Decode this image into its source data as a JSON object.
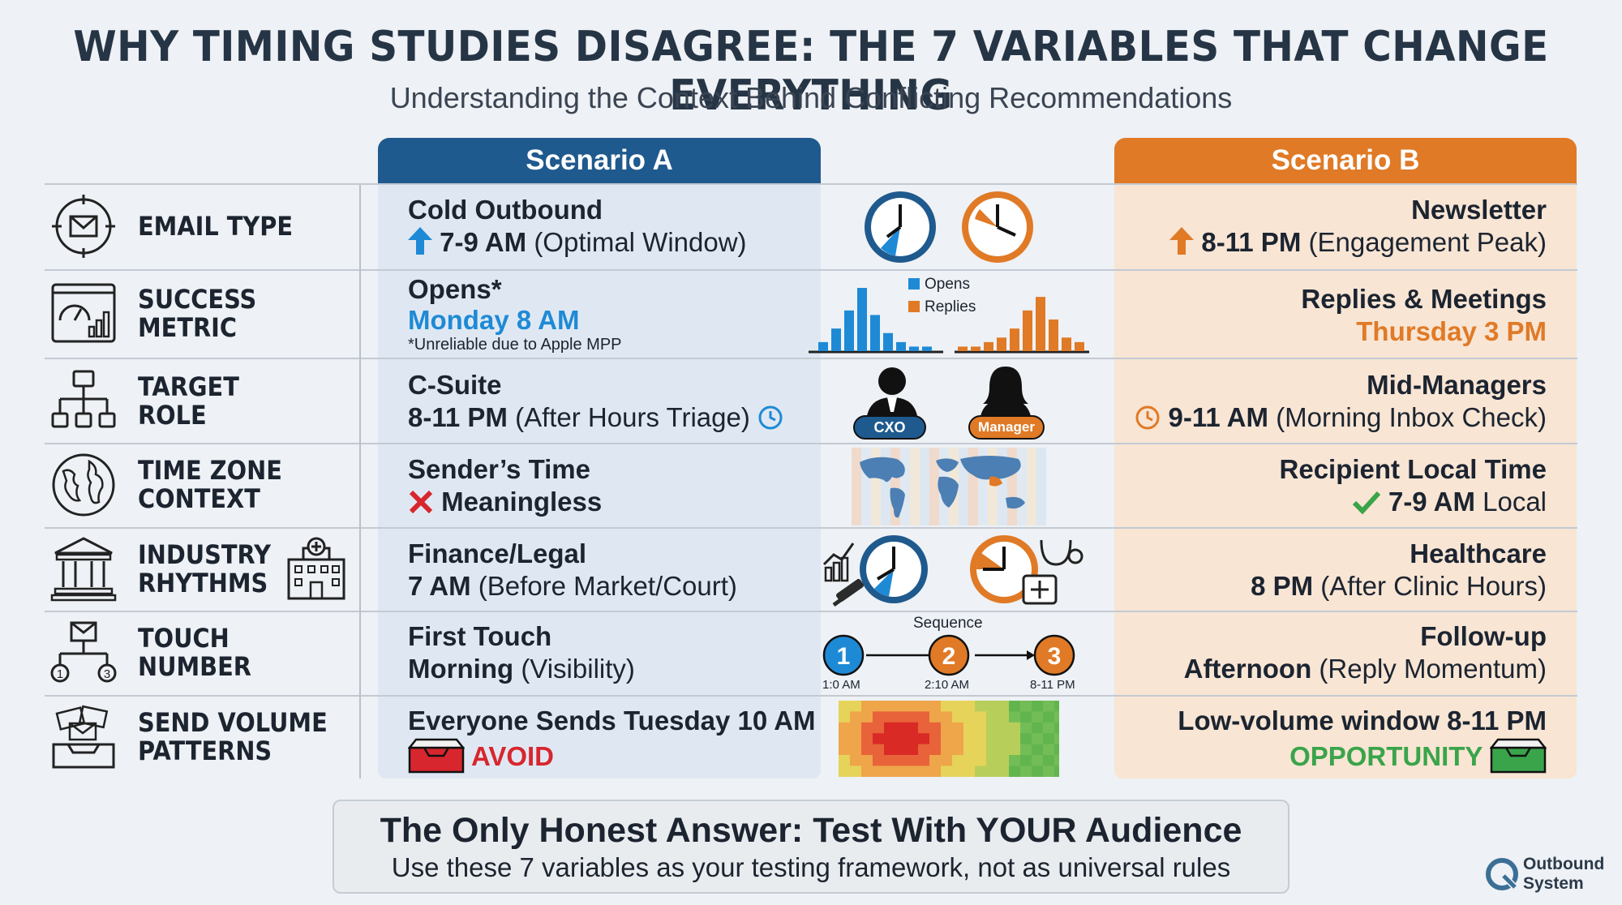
{
  "title": "WHY TIMING STUDIES DISAGREE: THE 7 VARIABLES THAT CHANGE EVERYTHING",
  "subtitle": "Understanding the Context Behind Conflicting Recommendations",
  "scenario_a_label": "Scenario A",
  "scenario_b_label": "Scenario B",
  "colors": {
    "blue": "#1f5a8e",
    "orange": "#e07a26",
    "accent_blue": "#1e8ad6",
    "green": "#3aa44a",
    "red": "#d8262e"
  },
  "rows": [
    {
      "label": "EMAIL TYPE",
      "icon": "target-envelope-icon",
      "a": {
        "title": "Cold Outbound",
        "value": "7-9 AM",
        "note": "(Optimal Window)"
      },
      "b": {
        "title": "Newsletter",
        "value": "8-11 PM",
        "note": "(Engagement Peak)"
      }
    },
    {
      "label_l1": "SUCCESS",
      "label_l2": "METRIC",
      "icon": "dashboard-chart-icon",
      "a": {
        "title": "Opens*",
        "value": "Monday 8 AM",
        "footnote": "*Unreliable due to Apple MPP"
      },
      "b": {
        "title": "Replies & Meetings",
        "value": "Thursday 3 PM"
      },
      "legend": [
        "Opens",
        "Replies"
      ]
    },
    {
      "label_l1": "TARGET",
      "label_l2": "ROLE",
      "icon": "org-chart-icon",
      "a": {
        "title": "C-Suite",
        "value": "8-11 PM",
        "note": "(After Hours Triage)"
      },
      "b": {
        "title": "Mid-Managers",
        "value": "9-11 AM",
        "note": "(Morning Inbox Check)"
      },
      "badges": [
        "CXO",
        "Manager"
      ]
    },
    {
      "label_l1": "TIME ZONE",
      "label_l2": "CONTEXT",
      "icon": "globe-icon",
      "a": {
        "title": "Sender’s Time",
        "value": "Meaningless"
      },
      "b": {
        "title": "Recipient Local Time",
        "value": "7-9 AM",
        "note": "Local"
      }
    },
    {
      "label_l1": "INDUSTRY",
      "label_l2": "RHYTHMS",
      "icon": "bank-building-icon",
      "a": {
        "title": "Finance/Legal",
        "value": "7 AM",
        "note": "(Before Market/Court)"
      },
      "b": {
        "title": "Healthcare",
        "value": "8 PM",
        "note": "(After Clinic Hours)"
      }
    },
    {
      "label_l1": "TOUCH",
      "label_l2": "NUMBER",
      "icon": "sequence-tree-icon",
      "a": {
        "title": "First Touch",
        "value": "Morning",
        "note": "(Visibility)"
      },
      "b": {
        "title": "Follow-up",
        "value": "Afternoon",
        "note": "(Reply Momentum)"
      },
      "sequence": {
        "label": "Sequence",
        "steps": [
          {
            "n": "1",
            "time": "1:0 AM"
          },
          {
            "n": "2",
            "time": "2:10 AM"
          },
          {
            "n": "3",
            "time": "8-11 PM"
          }
        ]
      }
    },
    {
      "label_l1": "SEND VOLUME",
      "label_l2": "PATTERNS",
      "icon": "inbox-stack-icon",
      "a": {
        "title": "Everyone Sends Tuesday 10 AM",
        "value": "AVOID"
      },
      "b": {
        "title": "Low-volume window 8-11 PM",
        "value": "OPPORTUNITY"
      }
    }
  ],
  "footer": {
    "title": "The Only Honest Answer: Test With YOUR Audience",
    "subtitle": "Use these 7 variables as your testing framework, not as universal rules"
  },
  "brand": {
    "line1": "Outbound",
    "line2": "System"
  },
  "chart_data": [
    {
      "type": "bar",
      "series": [
        {
          "name": "Opens",
          "values": [
            2,
            5,
            9,
            14,
            8,
            4,
            2,
            1,
            1
          ]
        },
        {
          "name": "Replies",
          "values": [
            1,
            1,
            2,
            3,
            5,
            9,
            12,
            7,
            3,
            2
          ]
        }
      ]
    }
  ]
}
